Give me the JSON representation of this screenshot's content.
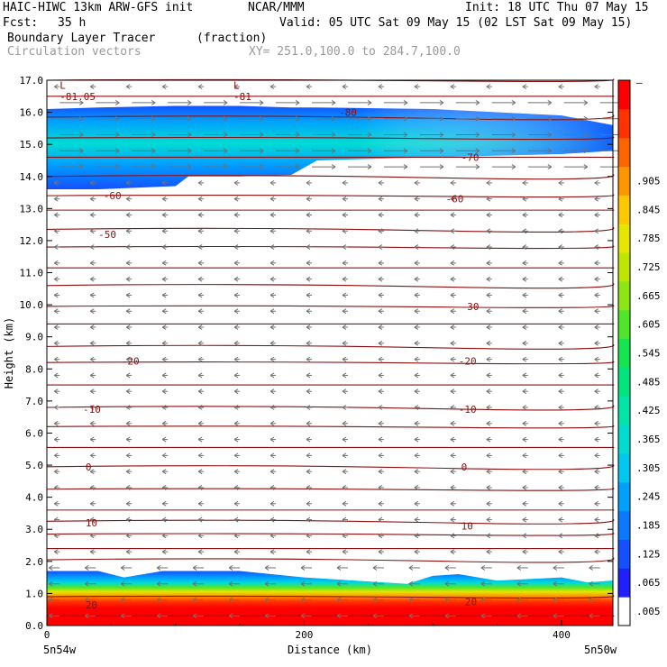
{
  "header": {
    "model": "HAIC-HIWC 13km ARW-GFS init",
    "org": "NCAR/MMM",
    "init": "Init: 18 UTC Thu 07 May 15",
    "fcst_label": "Fcst:",
    "fcst_value": "35 h",
    "valid": "Valid: 05 UTC Sat 09 May 15 (02 LST Sat 09 May 15)",
    "field_name": "Boundary Layer Tracer",
    "field_units": "(fraction)",
    "vector_label": "Circulation vectors",
    "xy_range": "XY= 251.0,100.0 to 284.7,100.0"
  },
  "chart_data": {
    "type": "heatmap",
    "xlabel": "Distance (km)",
    "ylabel": "Height (km)",
    "xlim": [
      0,
      440
    ],
    "ylim": [
      0,
      17
    ],
    "x_ticks": [
      "0",
      "200",
      "400"
    ],
    "x_end_labels": [
      "5n54w",
      "5n50w"
    ],
    "y_ticks": [
      "0.0",
      "1.0",
      "2.0",
      "3.0",
      "4.0",
      "5.0",
      "6.0",
      "7.0",
      "8.0",
      "9.0",
      "10.0",
      "11.0",
      "12.0",
      "13.0",
      "14.0",
      "15.0",
      "16.0",
      "17.0"
    ],
    "colorbar": {
      "labels": [
        ".005",
        ".065",
        ".125",
        ".185",
        ".245",
        ".305",
        ".365",
        ".425",
        ".485",
        ".545",
        ".605",
        ".665",
        ".725",
        ".785",
        ".845",
        ".905"
      ],
      "top_label": "–",
      "colors": [
        "#ffffff",
        "#2020ff",
        "#1450ff",
        "#0a78ff",
        "#00a0ff",
        "#00c8f0",
        "#00dcd2",
        "#00e6a8",
        "#00e67d",
        "#14e650",
        "#50e628",
        "#8ce614",
        "#bee600",
        "#e6e600",
        "#ffc800",
        "#ff9600",
        "#ff6400",
        "#ff3200",
        "#ff0000"
      ]
    },
    "tracer_layers": [
      {
        "name": "upper",
        "x": [
          0,
          40,
          100,
          110,
          150,
          190,
          210,
          300,
          400,
          440
        ],
        "bottom_km": [
          13.6,
          13.6,
          13.7,
          14.0,
          14.0,
          14.05,
          14.5,
          14.6,
          14.7,
          14.8
        ],
        "top_km": [
          16.1,
          16.15,
          16.2,
          16.2,
          16.2,
          16.15,
          16.15,
          16.1,
          15.9,
          15.6
        ],
        "core_value": 0.4
      },
      {
        "name": "boundary",
        "x": [
          0,
          40,
          60,
          90,
          150,
          200,
          280,
          300,
          320,
          350,
          400,
          420,
          440
        ],
        "top_km": [
          1.7,
          1.7,
          1.5,
          1.7,
          1.7,
          1.5,
          1.3,
          1.55,
          1.6,
          1.4,
          1.5,
          1.35,
          1.4
        ],
        "surface_value": 1.0
      }
    ],
    "contour_labels": [
      {
        "text": "-81.05",
        "x": 10,
        "y_km": 16.5
      },
      {
        "text": "L",
        "x": 10,
        "y_km": 16.85
      },
      {
        "text": "L",
        "x": 145,
        "y_km": 16.85
      },
      {
        "text": "-81",
        "x": 145,
        "y_km": 16.5
      },
      {
        "text": "-80",
        "x": 227,
        "y_km": 16.0
      },
      {
        "text": "-70",
        "x": 322,
        "y_km": 14.6
      },
      {
        "text": "-60",
        "x": 44,
        "y_km": 13.4
      },
      {
        "text": "-60",
        "x": 310,
        "y_km": 13.3
      },
      {
        "text": "-50",
        "x": 40,
        "y_km": 12.2
      },
      {
        "text": "-30",
        "x": 322,
        "y_km": 9.95
      },
      {
        "text": "-20",
        "x": 58,
        "y_km": 8.25
      },
      {
        "text": "-20",
        "x": 320,
        "y_km": 8.25
      },
      {
        "text": "-10",
        "x": 28,
        "y_km": 6.75
      },
      {
        "text": "-10",
        "x": 320,
        "y_km": 6.75
      },
      {
        "text": "0",
        "x": 30,
        "y_km": 4.95
      },
      {
        "text": "0",
        "x": 322,
        "y_km": 4.95
      },
      {
        "text": "10",
        "x": 30,
        "y_km": 3.2
      },
      {
        "text": "10",
        "x": 322,
        "y_km": 3.1
      },
      {
        "text": "20",
        "x": 30,
        "y_km": 0.65
      },
      {
        "text": "20",
        "x": 325,
        "y_km": 0.75
      }
    ],
    "isotherm_heights_km": [
      0.3,
      0.9,
      2.05,
      2.4,
      2.85,
      3.25,
      3.6,
      4.25,
      4.95,
      5.55,
      6.2,
      6.8,
      7.5,
      8.2,
      8.7,
      9.4,
      9.95,
      10.6,
      11.15,
      11.8,
      12.35,
      12.95,
      13.4,
      14.0,
      14.6,
      15.2,
      15.85,
      16.5,
      17.0
    ],
    "vectors": {
      "upper_u": 1.0,
      "mid_u": -0.3,
      "low_u": -0.6
    }
  }
}
